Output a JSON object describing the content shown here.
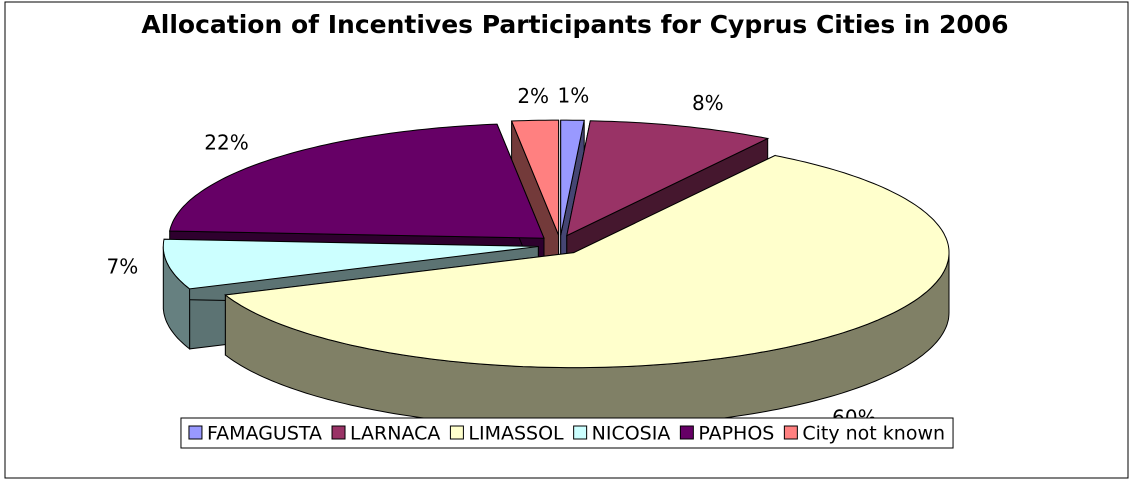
{
  "chart_data": {
    "type": "pie3d",
    "title": "Allocation of Incentives Participants for Cyprus Cities in 2006",
    "categories": [
      "FAMAGUSTA",
      "LARNACA",
      "LIMASSOL",
      "NICOSIA",
      "PAPHOS",
      "City not known"
    ],
    "values": [
      1,
      8,
      60,
      7,
      22,
      2
    ],
    "value_labels": [
      "1%",
      "8%",
      "60%",
      "7%",
      "22%",
      "2%"
    ],
    "colors": [
      "#9999ff",
      "#993366",
      "#ffffcc",
      "#ccffff",
      "#660066",
      "#ff8080"
    ],
    "legend": "bottom"
  }
}
